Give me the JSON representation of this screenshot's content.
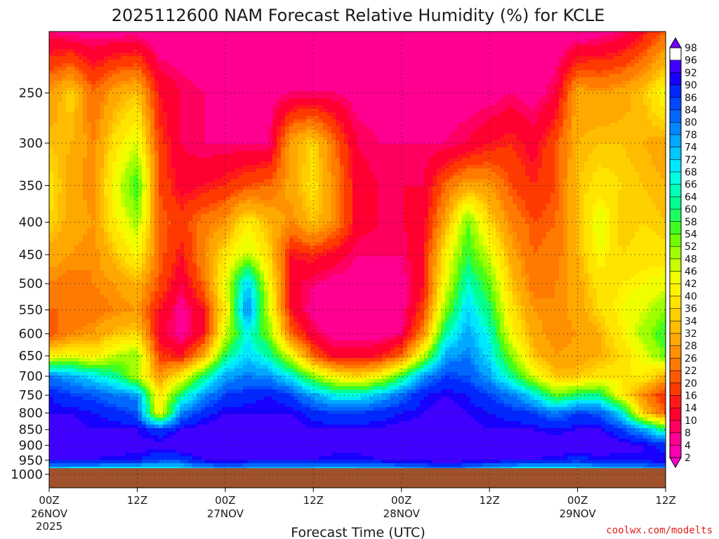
{
  "chart_data": {
    "type": "heatmap",
    "title": "2025112600 NAM Forecast Relative Humidity (%) for KCLE",
    "xlabel": "Forecast Time (UTC)",
    "ylabel": "",
    "credit": "coolwx.com/modelts",
    "x_ticks": [
      {
        "hour": 0,
        "label": "00Z",
        "date": "26NOV",
        "year": "2025"
      },
      {
        "hour": 12,
        "label": "12Z"
      },
      {
        "hour": 24,
        "label": "00Z",
        "date": "27NOV"
      },
      {
        "hour": 36,
        "label": "12Z"
      },
      {
        "hour": 48,
        "label": "00Z",
        "date": "28NOV"
      },
      {
        "hour": 60,
        "label": "12Z"
      },
      {
        "hour": 72,
        "label": "00Z",
        "date": "29NOV"
      },
      {
        "hour": 84,
        "label": "12Z"
      }
    ],
    "xlim": [
      0,
      84
    ],
    "y_ticks": [
      250,
      300,
      350,
      400,
      450,
      500,
      550,
      600,
      650,
      700,
      750,
      800,
      850,
      900,
      950,
      1000
    ],
    "y_scale": "log",
    "ylim": [
      1050,
      200
    ],
    "surface_pressure_hpa": 978,
    "colorbar": {
      "levels": [
        2,
        4,
        8,
        10,
        14,
        16,
        20,
        22,
        26,
        28,
        32,
        34,
        36,
        40,
        42,
        46,
        48,
        52,
        54,
        58,
        60,
        64,
        66,
        68,
        72,
        74,
        78,
        80,
        84,
        86,
        90,
        92,
        96,
        98
      ],
      "colors": [
        "#ff00c8",
        "#ff00b0",
        "#ff0090",
        "#ff0060",
        "#ff0030",
        "#ff1a1a",
        "#ff3a00",
        "#ff5a00",
        "#ff7a00",
        "#ff9000",
        "#ffa800",
        "#ffbc00",
        "#ffd000",
        "#ffe400",
        "#fff400",
        "#f0ff00",
        "#c8ff00",
        "#a0ff00",
        "#70ff00",
        "#40ff20",
        "#20ff60",
        "#00ff90",
        "#00ffb8",
        "#00ffe0",
        "#00e8ff",
        "#00c8ff",
        "#00a8ff",
        "#0088ff",
        "#0068ff",
        "#0048ff",
        "#0028ff",
        "#1800ff",
        "#4000ff",
        "#7000ff"
      ]
    },
    "grid": true,
    "rh_field": {
      "hours": [
        0,
        3,
        6,
        9,
        12,
        15,
        18,
        21,
        24,
        27,
        30,
        33,
        36,
        39,
        42,
        45,
        48,
        51,
        54,
        57,
        60,
        63,
        66,
        69,
        72,
        75,
        78,
        81,
        84
      ],
      "pressures": [
        200,
        250,
        300,
        350,
        400,
        450,
        500,
        550,
        600,
        650,
        700,
        750,
        800,
        850,
        900,
        950,
        978
      ],
      "values": [
        [
          8,
          6,
          6,
          6,
          6,
          4,
          4,
          4,
          4,
          4,
          4,
          4,
          4,
          4,
          4,
          4,
          4,
          4,
          4,
          4,
          4,
          4,
          4,
          4,
          4,
          6,
          8,
          14,
          22
        ],
        [
          28,
          36,
          22,
          30,
          34,
          14,
          10,
          8,
          6,
          6,
          6,
          8,
          8,
          8,
          6,
          6,
          6,
          6,
          6,
          6,
          6,
          8,
          6,
          10,
          30,
          28,
          30,
          34,
          44
        ],
        [
          34,
          32,
          26,
          38,
          46,
          18,
          10,
          8,
          8,
          8,
          8,
          30,
          36,
          22,
          10,
          8,
          8,
          8,
          8,
          10,
          14,
          16,
          12,
          20,
          32,
          34,
          34,
          32,
          30
        ],
        [
          38,
          30,
          26,
          44,
          58,
          20,
          12,
          14,
          16,
          20,
          22,
          30,
          38,
          26,
          12,
          10,
          10,
          10,
          22,
          30,
          28,
          20,
          16,
          20,
          34,
          38,
          36,
          34,
          32
        ],
        [
          36,
          30,
          28,
          40,
          50,
          22,
          18,
          24,
          28,
          40,
          32,
          26,
          34,
          26,
          12,
          10,
          10,
          12,
          30,
          54,
          36,
          26,
          20,
          22,
          32,
          46,
          34,
          36,
          34
        ],
        [
          30,
          28,
          26,
          34,
          42,
          22,
          14,
          26,
          38,
          48,
          36,
          14,
          16,
          12,
          8,
          8,
          8,
          14,
          40,
          58,
          46,
          30,
          22,
          24,
          32,
          42,
          36,
          38,
          38
        ],
        [
          26,
          24,
          26,
          28,
          32,
          20,
          10,
          22,
          44,
          74,
          42,
          12,
          8,
          6,
          6,
          6,
          6,
          14,
          44,
          66,
          54,
          34,
          24,
          26,
          30,
          38,
          40,
          42,
          44
        ],
        [
          22,
          22,
          24,
          26,
          28,
          14,
          6,
          14,
          40,
          80,
          46,
          14,
          6,
          6,
          6,
          6,
          6,
          18,
          52,
          72,
          60,
          38,
          28,
          26,
          30,
          36,
          42,
          46,
          52
        ],
        [
          20,
          26,
          28,
          34,
          36,
          12,
          6,
          14,
          46,
          68,
          52,
          22,
          10,
          6,
          6,
          6,
          8,
          26,
          64,
          76,
          66,
          42,
          30,
          26,
          28,
          32,
          40,
          50,
          58
        ],
        [
          40,
          44,
          40,
          48,
          52,
          18,
          14,
          30,
          60,
          72,
          64,
          44,
          22,
          12,
          12,
          14,
          22,
          48,
          76,
          80,
          70,
          52,
          34,
          28,
          30,
          32,
          36,
          44,
          54
        ],
        [
          80,
          76,
          70,
          62,
          48,
          28,
          40,
          60,
          76,
          80,
          78,
          68,
          52,
          40,
          36,
          42,
          58,
          78,
          86,
          84,
          76,
          62,
          46,
          34,
          34,
          38,
          40,
          40,
          30
        ],
        [
          90,
          86,
          84,
          80,
          78,
          38,
          62,
          78,
          86,
          88,
          90,
          86,
          76,
          68,
          68,
          74,
          82,
          90,
          92,
          90,
          86,
          80,
          70,
          54,
          60,
          62,
          40,
          26,
          16
        ],
        [
          92,
          92,
          90,
          88,
          84,
          40,
          80,
          88,
          92,
          92,
          92,
          92,
          88,
          86,
          86,
          88,
          90,
          92,
          94,
          92,
          90,
          88,
          86,
          80,
          86,
          84,
          70,
          34,
          20
        ],
        [
          94,
          94,
          92,
          92,
          92,
          86,
          92,
          94,
          94,
          94,
          94,
          94,
          92,
          92,
          92,
          92,
          94,
          94,
          94,
          94,
          92,
          92,
          92,
          90,
          92,
          92,
          86,
          76,
          60
        ],
        [
          96,
          96,
          96,
          96,
          94,
          94,
          96,
          96,
          96,
          96,
          96,
          96,
          96,
          94,
          94,
          96,
          96,
          96,
          96,
          96,
          96,
          94,
          96,
          96,
          96,
          96,
          94,
          92,
          88
        ],
        [
          92,
          92,
          92,
          90,
          90,
          86,
          86,
          92,
          94,
          92,
          92,
          92,
          92,
          90,
          90,
          92,
          94,
          94,
          94,
          94,
          94,
          92,
          92,
          90,
          88,
          90,
          90,
          92,
          92
        ],
        [
          74,
          72,
          72,
          72,
          70,
          70,
          72,
          76,
          80,
          78,
          76,
          76,
          74,
          74,
          74,
          76,
          78,
          80,
          82,
          80,
          76,
          72,
          70,
          70,
          72,
          74,
          76,
          78,
          80
        ]
      ]
    }
  }
}
